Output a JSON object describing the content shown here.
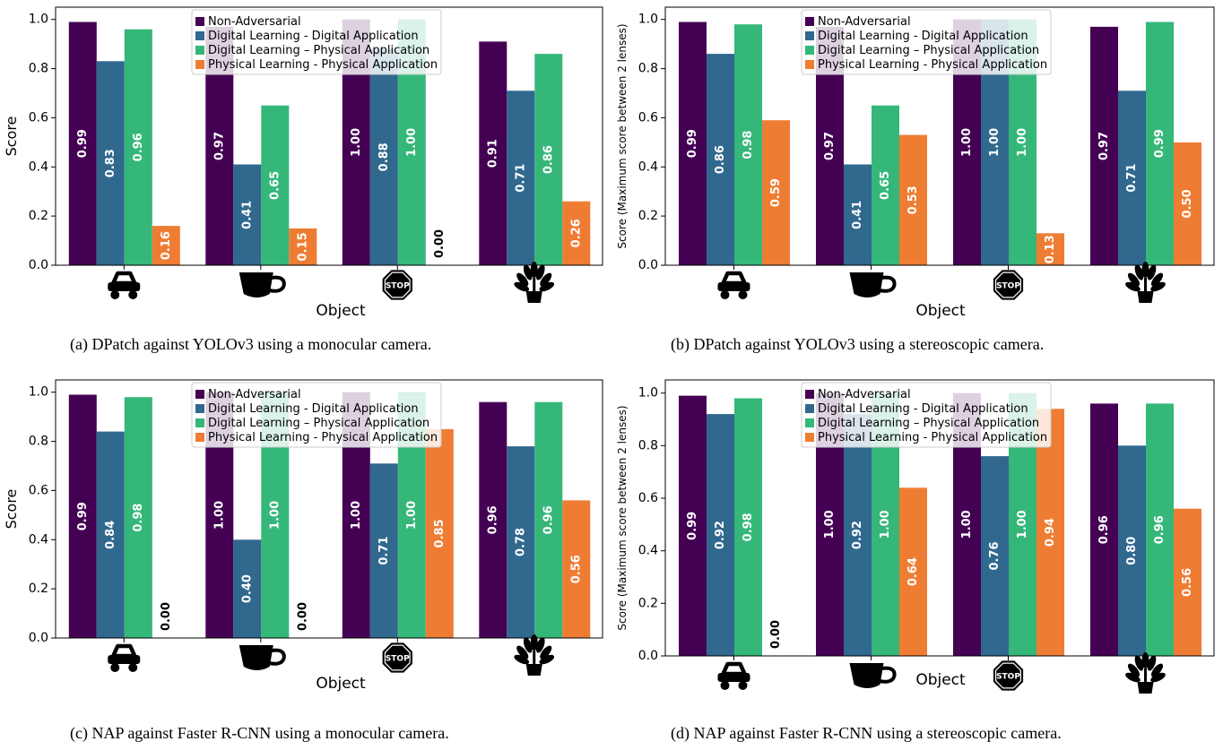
{
  "colors": [
    "#440154",
    "#31688e",
    "#35b779",
    "#ee7d33"
  ],
  "legend": [
    "Non-Adversarial",
    "Digital Learning - Digital Application",
    "Digital Learning – Physical Application",
    "Physical Learning - Physical Application"
  ],
  "icons": [
    "car-icon",
    "cup-icon",
    "stop-sign-icon",
    "potted-plant-icon"
  ],
  "stop_text": "STOP",
  "chart_data": [
    {
      "type": "bar",
      "xlabel": "Object",
      "ylabel": "Score",
      "ylim": [
        0,
        1.05
      ],
      "yticks": [
        "0.0",
        "0.2",
        "0.4",
        "0.6",
        "0.8",
        "1.0"
      ],
      "legend_position": "top-center",
      "series": [
        {
          "name": "Non-Adversarial",
          "values": [
            0.99,
            0.97,
            1.0,
            0.91
          ],
          "labels": [
            "0.99",
            "0.97",
            "1.00",
            "0.91"
          ]
        },
        {
          "name": "Digital Learning - Digital Application",
          "values": [
            0.83,
            0.41,
            0.88,
            0.71
          ],
          "labels": [
            "0.83",
            "0.41",
            "0.88",
            "0.71"
          ]
        },
        {
          "name": "Digital Learning – Physical Application",
          "values": [
            0.96,
            0.65,
            1.0,
            0.86
          ],
          "labels": [
            "0.96",
            "0.65",
            "1.00",
            "0.86"
          ]
        },
        {
          "name": "Physical Learning - Physical Application",
          "values": [
            0.16,
            0.15,
            0.0,
            0.26
          ],
          "labels": [
            "0.16",
            "0.15",
            "0.00",
            "0.26"
          ]
        }
      ],
      "caption": "(a) DPatch against YOLOv3 using a monocular camera."
    },
    {
      "type": "bar",
      "xlabel": "Object",
      "ylabel": "Score (Maximum score between 2 lenses)",
      "ylim": [
        0,
        1.05
      ],
      "yticks": [
        "0.0",
        "0.2",
        "0.4",
        "0.6",
        "0.8",
        "1.0"
      ],
      "legend_position": "top-center",
      "series": [
        {
          "name": "Non-Adversarial",
          "values": [
            0.99,
            0.97,
            1.0,
            0.97
          ],
          "labels": [
            "0.99",
            "0.97",
            "1.00",
            "0.97"
          ]
        },
        {
          "name": "Digital Learning - Digital Application",
          "values": [
            0.86,
            0.41,
            1.0,
            0.71
          ],
          "labels": [
            "0.86",
            "0.41",
            "1.00",
            "0.71"
          ]
        },
        {
          "name": "Digital Learning – Physical Application",
          "values": [
            0.98,
            0.65,
            1.0,
            0.99
          ],
          "labels": [
            "0.98",
            "0.65",
            "1.00",
            "0.99"
          ]
        },
        {
          "name": "Physical Learning - Physical Application",
          "values": [
            0.59,
            0.53,
            0.13,
            0.5
          ],
          "labels": [
            "0.59",
            "0.53",
            "0.13",
            "0.50"
          ]
        }
      ],
      "caption": "(b) DPatch against YOLOv3 using a stereoscopic camera."
    },
    {
      "type": "bar",
      "xlabel": "Object",
      "ylabel": "Score",
      "ylim": [
        0,
        1.05
      ],
      "yticks": [
        "0.0",
        "0.2",
        "0.4",
        "0.6",
        "0.8",
        "1.0"
      ],
      "legend_position": "top-center",
      "series": [
        {
          "name": "Non-Adversarial",
          "values": [
            0.99,
            1.0,
            1.0,
            0.96
          ],
          "labels": [
            "0.99",
            "1.00",
            "1.00",
            "0.96"
          ]
        },
        {
          "name": "Digital Learning - Digital Application",
          "values": [
            0.84,
            0.4,
            0.71,
            0.78
          ],
          "labels": [
            "0.84",
            "0.40",
            "0.71",
            "0.78"
          ]
        },
        {
          "name": "Digital Learning – Physical Application",
          "values": [
            0.98,
            1.0,
            1.0,
            0.96
          ],
          "labels": [
            "0.98",
            "1.00",
            "1.00",
            "0.96"
          ]
        },
        {
          "name": "Physical Learning - Physical Application",
          "values": [
            0.0,
            0.0,
            0.85,
            0.56
          ],
          "labels": [
            "0.00",
            "0.00",
            "0.85",
            "0.56"
          ]
        }
      ],
      "caption": "(c) NAP against Faster R-CNN using a monocular camera."
    },
    {
      "type": "bar",
      "xlabel": "Object",
      "ylabel": "Score (Maximum score between 2 lenses)",
      "ylim": [
        0,
        1.05
      ],
      "yticks": [
        "0.0",
        "0.2",
        "0.4",
        "0.6",
        "0.8",
        "1.0"
      ],
      "legend_position": "top-center",
      "series": [
        {
          "name": "Non-Adversarial",
          "values": [
            0.99,
            1.0,
            1.0,
            0.96
          ],
          "labels": [
            "0.99",
            "1.00",
            "1.00",
            "0.96"
          ]
        },
        {
          "name": "Digital Learning - Digital Application",
          "values": [
            0.92,
            0.92,
            0.76,
            0.8
          ],
          "labels": [
            "0.92",
            "0.92",
            "0.76",
            "0.80"
          ]
        },
        {
          "name": "Digital Learning – Physical Application",
          "values": [
            0.98,
            1.0,
            1.0,
            0.96
          ],
          "labels": [
            "0.98",
            "1.00",
            "1.00",
            "0.96"
          ]
        },
        {
          "name": "Physical Learning - Physical Application",
          "values": [
            0.0,
            0.64,
            0.94,
            0.56
          ],
          "labels": [
            "0.00",
            "0.64",
            "0.94",
            "0.56"
          ]
        }
      ],
      "caption": "(d) NAP against Faster R-CNN using a stereoscopic camera."
    }
  ]
}
